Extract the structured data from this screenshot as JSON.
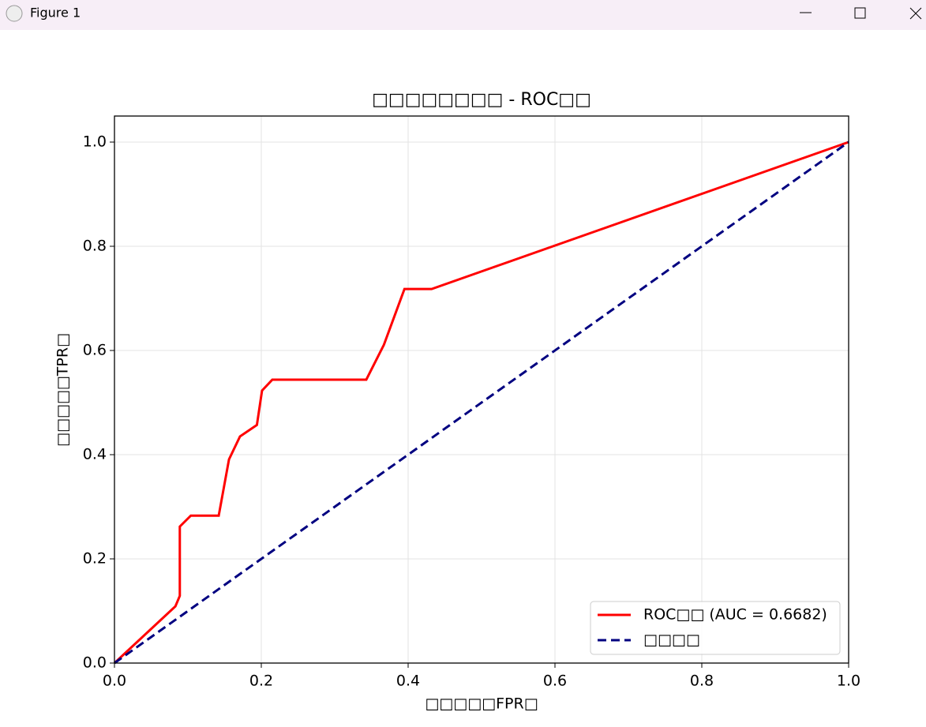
{
  "window": {
    "title": "Figure 1"
  },
  "chart_data": {
    "type": "line",
    "title": "□□□□□□□□ - ROC□□",
    "x_label": "□□□□□FPR□",
    "y_label": "□□□□□TPR□",
    "xlim": [
      0,
      1
    ],
    "ylim": [
      0,
      1.05
    ],
    "xticks": [
      {
        "value": 0,
        "label": "0.0"
      },
      0.2,
      0.4,
      0.6,
      0.8,
      {
        "value": 1,
        "label": "1.0"
      }
    ],
    "yticks": [
      {
        "value": 0,
        "label": "0.0"
      },
      0.2,
      0.4,
      0.6,
      0.8,
      {
        "value": 1,
        "label": "1.0"
      }
    ],
    "grid": true,
    "legend": "lower right",
    "series": [
      {
        "name": "ROC□□ (AUC = 0.6682)",
        "color": "#ff0000",
        "dash": false,
        "x": [
          0,
          0.083,
          0.089,
          0.089,
          0.104,
          0.142,
          0.156,
          0.171,
          0.194,
          0.201,
          0.215,
          0.343,
          0.367,
          0.395,
          0.432,
          1
        ],
        "values": [
          0,
          0.109,
          0.129,
          0.262,
          0.283,
          0.283,
          0.391,
          0.435,
          0.457,
          0.523,
          0.544,
          0.544,
          0.611,
          0.718,
          0.718,
          1
        ]
      },
      {
        "name": "□□□□",
        "color": "#000080",
        "dash": true,
        "x": [
          0,
          1
        ],
        "values": [
          0,
          1
        ]
      }
    ]
  }
}
